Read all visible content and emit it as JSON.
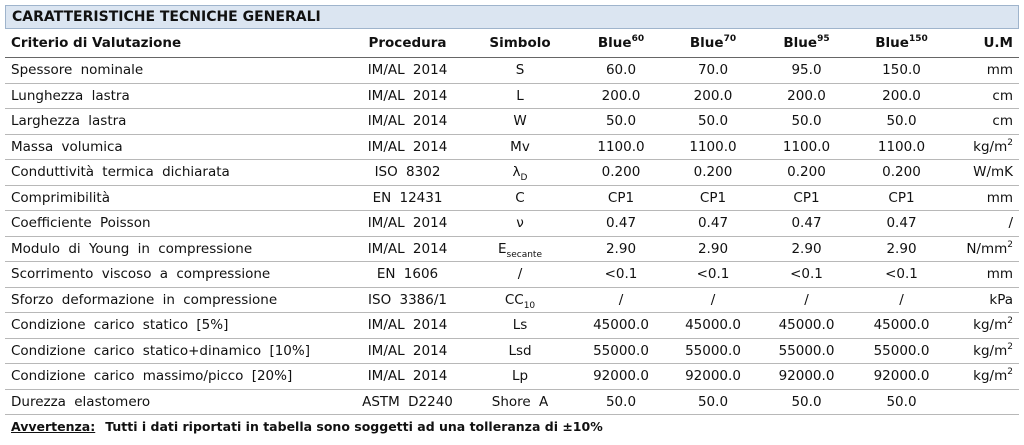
{
  "title": "CARATTERISTICHE TECNICHE GENERALI",
  "header": [
    "Criterio di Valutazione",
    "Procedura",
    "Simbolo",
    {
      "text": "Blue",
      "sup": "60"
    },
    {
      "text": "Blue",
      "sup": "70"
    },
    {
      "text": "Blue",
      "sup": "95"
    },
    {
      "text": "Blue",
      "sup": "150"
    },
    "U.M"
  ],
  "rows": [
    [
      "Spessore nominale",
      "IM/AL 2014",
      "S",
      "60.0",
      "70.0",
      "95.0",
      "150.0",
      "mm"
    ],
    [
      "Lunghezza lastra",
      "IM/AL 2014",
      "L",
      "200.0",
      "200.0",
      "200.0",
      "200.0",
      "cm"
    ],
    [
      "Larghezza lastra",
      "IM/AL 2014",
      "W",
      "50.0",
      "50.0",
      "50.0",
      "50.0",
      "cm"
    ],
    [
      "Massa volumica",
      "IM/AL 2014",
      "Mv",
      "1100.0",
      "1100.0",
      "1100.0",
      "1100.0",
      {
        "text": "kg/m",
        "sup": "2"
      }
    ],
    [
      "Conduttività termica dichiarata",
      "ISO 8302",
      {
        "text": "λ",
        "sub": "D"
      },
      "0.200",
      "0.200",
      "0.200",
      "0.200",
      "W/mK"
    ],
    [
      "Comprimibilità",
      "EN 12431",
      "C",
      "CP1",
      "CP1",
      "CP1",
      "CP1",
      "mm"
    ],
    [
      "Coefficiente Poisson",
      "IM/AL 2014",
      "ν",
      "0.47",
      "0.47",
      "0.47",
      "0.47",
      "/"
    ],
    [
      "Modulo di Young in compressione",
      "IM/AL 2014",
      {
        "text": "E",
        "sub": "secante"
      },
      "2.90",
      "2.90",
      "2.90",
      "2.90",
      {
        "text": "N/mm",
        "sup": "2"
      }
    ],
    [
      "Scorrimento viscoso a compressione",
      "EN 1606",
      "/",
      "<0.1",
      "<0.1",
      "<0.1",
      "<0.1",
      "mm"
    ],
    [
      "Sforzo deformazione in compressione",
      "ISO 3386/1",
      {
        "text": "CC",
        "sub": "10"
      },
      "/",
      "/",
      "/",
      "/",
      "kPa"
    ],
    [
      "Condizione carico statico [5%]",
      "IM/AL 2014",
      "Ls",
      "45000.0",
      "45000.0",
      "45000.0",
      "45000.0",
      {
        "text": "kg/m",
        "sup": "2"
      }
    ],
    [
      "Condizione carico statico+dinamico [10%]",
      "IM/AL 2014",
      "Lsd",
      "55000.0",
      "55000.0",
      "55000.0",
      "55000.0",
      {
        "text": "kg/m",
        "sup": "2"
      }
    ],
    [
      "Condizione carico massimo/picco [20%]",
      "IM/AL 2014",
      "Lp",
      "92000.0",
      "92000.0",
      "92000.0",
      "92000.0",
      {
        "text": "kg/m",
        "sup": "2"
      }
    ],
    [
      "Durezza elastomero",
      "ASTM D2240",
      "Shore A",
      "50.0",
      "50.0",
      "50.0",
      "50.0"
    ]
  ],
  "footer": {
    "label": "Avvertenza:",
    "text": "Tutti i dati riportati in tabella sono soggetti ad una tolleranza di ±10%"
  }
}
